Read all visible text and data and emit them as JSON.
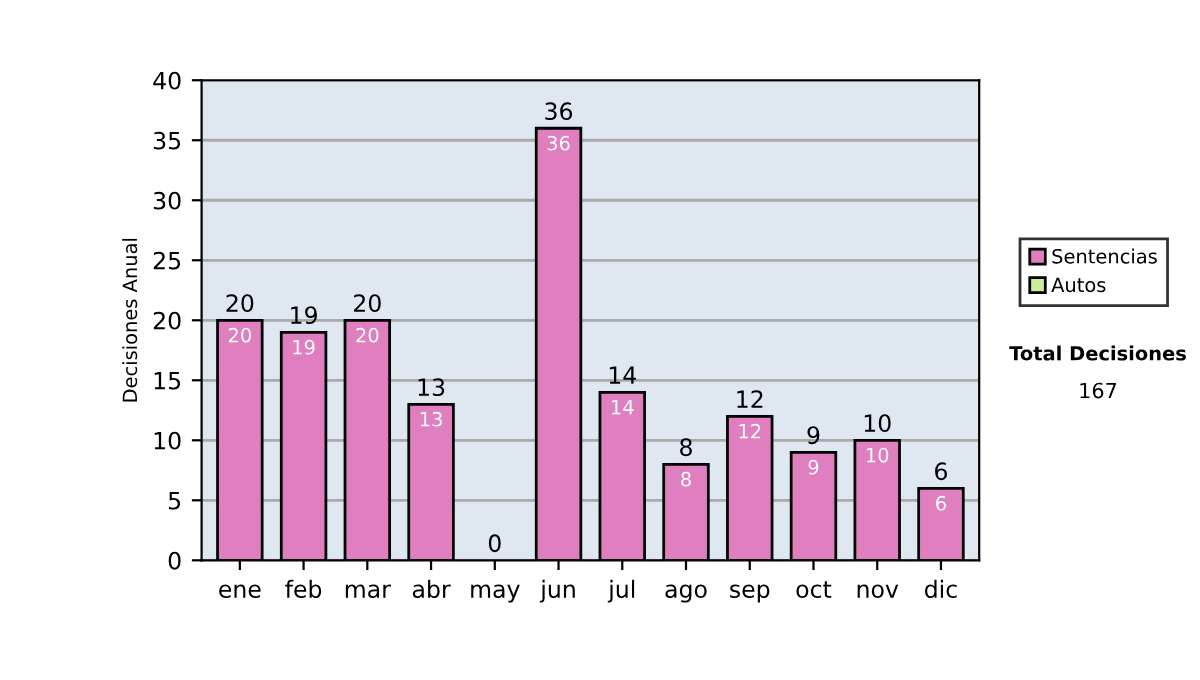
{
  "chart_data": {
    "type": "bar",
    "stacked": true,
    "ylabel": "Decisiones Anual",
    "categories": [
      "ene",
      "feb",
      "mar",
      "abr",
      "may",
      "jun",
      "jul",
      "ago",
      "sep",
      "oct",
      "nov",
      "dic"
    ],
    "series": [
      {
        "name": "Sentencias",
        "color": "#e07fc0",
        "values": [
          20,
          19,
          20,
          13,
          0,
          36,
          14,
          8,
          12,
          9,
          10,
          6
        ],
        "value_labels": [
          "20",
          "19",
          "20",
          "13",
          null,
          "36",
          "14",
          "8",
          "12",
          "9",
          "10",
          "6"
        ]
      },
      {
        "name": "Autos",
        "color": "#ccee99",
        "values": [
          0,
          0,
          0,
          0,
          0,
          0,
          0,
          0,
          0,
          0,
          0,
          0
        ]
      }
    ],
    "totals": [
      "20",
      "19",
      "20",
      "13",
      "0",
      "36",
      "14",
      "8",
      "12",
      "9",
      "10",
      "6"
    ],
    "ylim": [
      0,
      40
    ],
    "yticks": [
      0,
      5,
      10,
      15,
      20,
      25,
      30,
      35,
      40
    ],
    "grid": "y",
    "legend": "right",
    "annotations": [
      "Total Decisiones",
      "167"
    ]
  }
}
